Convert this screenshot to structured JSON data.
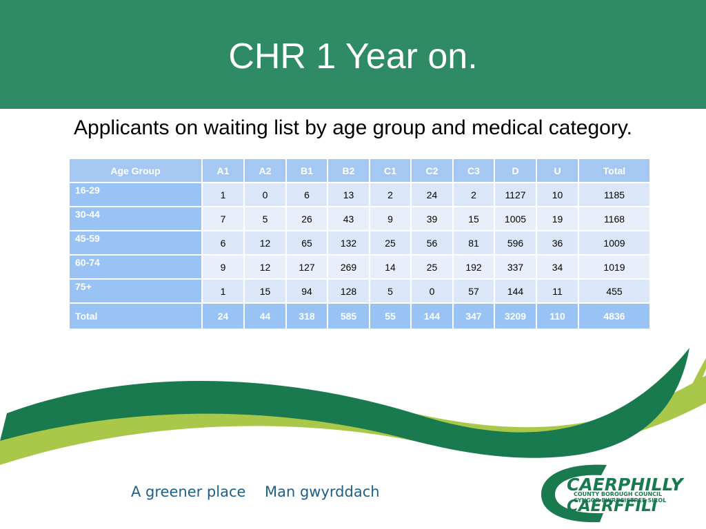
{
  "header": {
    "title": "CHR 1 Year on."
  },
  "subtitle": "Applicants on waiting list by age group and medical category.",
  "table": {
    "columns": [
      "Age Group",
      "A1",
      "A2",
      "B1",
      "B2",
      "C1",
      "C2",
      "C3",
      "D",
      "U",
      "Total"
    ],
    "rows": [
      [
        "16-29",
        1,
        0,
        6,
        13,
        2,
        24,
        2,
        1127,
        10,
        1185
      ],
      [
        "30-44",
        7,
        5,
        26,
        43,
        9,
        39,
        15,
        1005,
        19,
        1168
      ],
      [
        "45-59",
        6,
        12,
        65,
        132,
        25,
        56,
        81,
        596,
        36,
        1009
      ],
      [
        "60-74",
        9,
        12,
        127,
        269,
        14,
        25,
        192,
        337,
        34,
        1019
      ],
      [
        "75+",
        1,
        15,
        94,
        128,
        5,
        0,
        57,
        144,
        11,
        455
      ]
    ],
    "total_row": [
      "Total",
      24,
      44,
      318,
      585,
      55,
      144,
      347,
      3209,
      110,
      4836
    ]
  },
  "footer": {
    "slogan_en": "A greener place",
    "slogan_cy": "Man gwyrddach"
  },
  "logo": {
    "name_en": "CAERPHILLY",
    "line1": "COUNTY BOROUGH COUNCIL",
    "line2": "CYNGOR BWRDEISTREF SIROL",
    "name_cy": "CAERFFILI"
  }
}
